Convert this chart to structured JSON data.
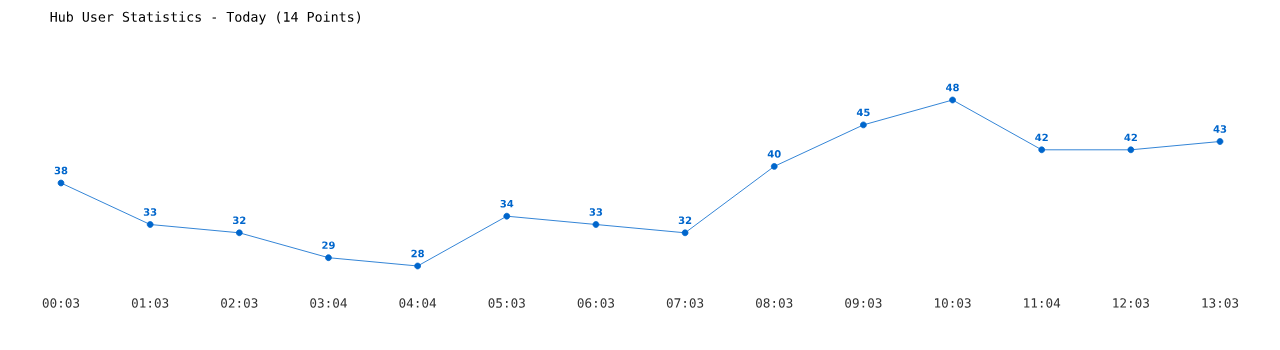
{
  "chart_data": {
    "type": "line",
    "title": "Hub User Statistics - Today (14 Points)",
    "categories": [
      "00:03",
      "01:03",
      "02:03",
      "03:04",
      "04:04",
      "05:03",
      "06:03",
      "07:03",
      "08:03",
      "09:03",
      "10:03",
      "11:04",
      "12:03",
      "13:03"
    ],
    "values": [
      38,
      33,
      32,
      29,
      28,
      34,
      33,
      32,
      40,
      45,
      48,
      42,
      42,
      43
    ],
    "color": "#0066cc",
    "data_labels": true,
    "marker": "circle",
    "line_style": "solid"
  }
}
